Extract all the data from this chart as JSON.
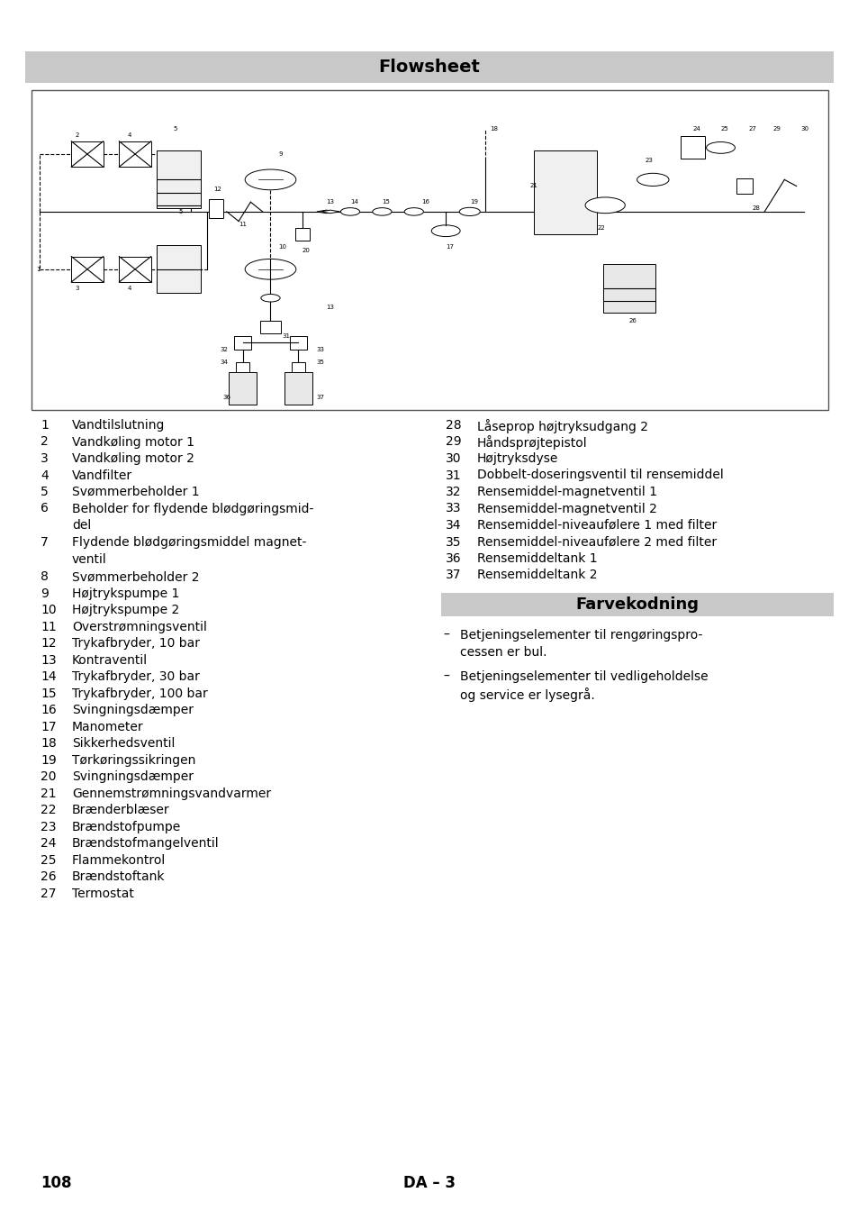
{
  "title": "Flowsheet",
  "farvekodning_title": "Farvekodning",
  "page_number": "108",
  "page_code": "DA – 3",
  "bg_color": "#ffffff",
  "header_bg": "#c8c8c8",
  "farvekodning_bg": "#c8c8c8",
  "left_items": [
    {
      "num": "1",
      "text": "Vandtilslutning",
      "wrap": false
    },
    {
      "num": "2",
      "text": "Vandkøling motor 1",
      "wrap": false
    },
    {
      "num": "3",
      "text": "Vandkøling motor 2",
      "wrap": false
    },
    {
      "num": "4",
      "text": "Vandfilter",
      "wrap": false
    },
    {
      "num": "5",
      "text": "Svømmerbeholder 1",
      "wrap": false
    },
    {
      "num": "6",
      "text": "Beholder for flydende blødgøringsmid-",
      "wrap": true,
      "wrap2": "del"
    },
    {
      "num": "7",
      "text": "Flydende blødgøringsmiddel magnet-",
      "wrap": true,
      "wrap2": "ventil"
    },
    {
      "num": "8",
      "text": "Svømmerbeholder 2",
      "wrap": false
    },
    {
      "num": "9",
      "text": "Højtrykspumpe 1",
      "wrap": false
    },
    {
      "num": "10",
      "text": "Højtrykspumpe 2",
      "wrap": false
    },
    {
      "num": "11",
      "text": "Overstrømningsventil",
      "wrap": false
    },
    {
      "num": "12",
      "text": "Trykafbryder, 10 bar",
      "wrap": false
    },
    {
      "num": "13",
      "text": "Kontraventil",
      "wrap": false
    },
    {
      "num": "14",
      "text": "Trykafbryder, 30 bar",
      "wrap": false
    },
    {
      "num": "15",
      "text": "Trykafbryder, 100 bar",
      "wrap": false
    },
    {
      "num": "16",
      "text": "Svingningsdæmper",
      "wrap": false
    },
    {
      "num": "17",
      "text": "Manometer",
      "wrap": false
    },
    {
      "num": "18",
      "text": "Sikkerhedsventil",
      "wrap": false
    },
    {
      "num": "19",
      "text": "Tørkøringssikringen",
      "wrap": false
    },
    {
      "num": "20",
      "text": "Svingningsdæmper",
      "wrap": false
    },
    {
      "num": "21",
      "text": "Gennemstrømningsvandvarmer",
      "wrap": false
    },
    {
      "num": "22",
      "text": "Brænderblæser",
      "wrap": false
    },
    {
      "num": "23",
      "text": "Brændstofpumpe",
      "wrap": false
    },
    {
      "num": "24",
      "text": "Brændstofmangelventil",
      "wrap": false
    },
    {
      "num": "25",
      "text": "Flammekontrol",
      "wrap": false
    },
    {
      "num": "26",
      "text": "Brændstoftank",
      "wrap": false
    },
    {
      "num": "27",
      "text": "Termostat",
      "wrap": false
    }
  ],
  "right_items": [
    {
      "num": "28",
      "text": "Låseprop højtryksudgang 2",
      "wrap": false
    },
    {
      "num": "29",
      "text": "Håndsprøjtepistol",
      "wrap": false
    },
    {
      "num": "30",
      "text": "Højtryksdyse",
      "wrap": false
    },
    {
      "num": "31",
      "text": "Dobbelt-doseringsventil til rensemiddel",
      "wrap": false
    },
    {
      "num": "32",
      "text": "Rensemiddel-magnetventil 1",
      "wrap": false
    },
    {
      "num": "33",
      "text": "Rensemiddel-magnetventil 2",
      "wrap": false
    },
    {
      "num": "34",
      "text": "Rensemiddel-niveaufølere 1 med filter",
      "wrap": false
    },
    {
      "num": "35",
      "text": "Rensemiddel-niveaufølere 2 med filter",
      "wrap": false
    },
    {
      "num": "36",
      "text": "Rensemiddeltank 1",
      "wrap": false
    },
    {
      "num": "37",
      "text": "Rensemiddeltank 2",
      "wrap": false
    }
  ],
  "farvekodning_items": [
    {
      "line1": "Betjeningselementer til rengøringspro-",
      "line2": "cessen er bul."
    },
    {
      "line1": "Betjeningselementer til vedligeholdelse",
      "line2": "og service er lysegrå."
    }
  ],
  "title_fontsize": 14,
  "body_fontsize": 10,
  "footer_fontsize": 12,
  "farvekodning_fontsize": 13
}
